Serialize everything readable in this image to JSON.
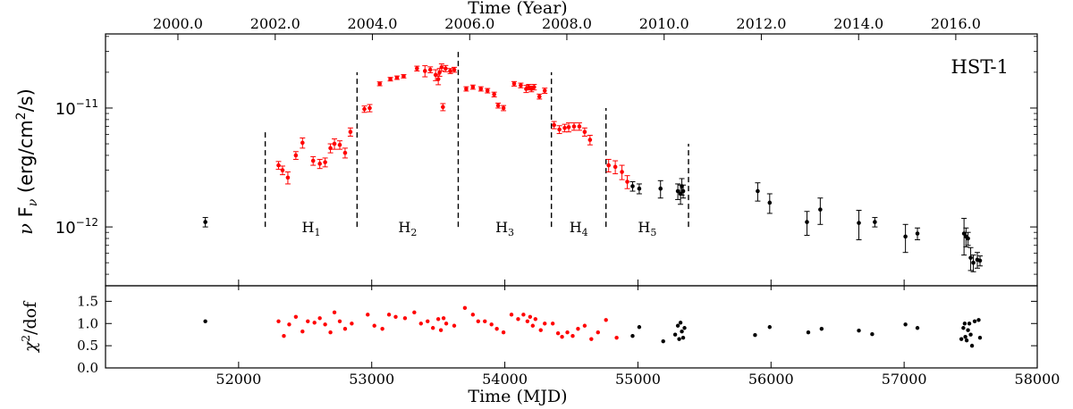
{
  "chart_data": [
    {
      "type": "scatter",
      "panel": "top",
      "title_top_axis": "Time (Year)",
      "ylabel": "ν Fν (erg/cm²/s)",
      "ylabel_parts": {
        "nu": "ν",
        "F": " F",
        "sub": "ν",
        "rest": " (erg/cm",
        "sup": "2",
        "close": "/s)"
      },
      "yscale": "log",
      "ylim": [
        3.2e-13,
        4.2e-11
      ],
      "xlim": [
        51000,
        58000
      ],
      "annotation": "HST-1",
      "year_ticks": [
        {
          "label": "2000.0",
          "mjd": 51544
        },
        {
          "label": "2002.0",
          "mjd": 52275
        },
        {
          "label": "2004.0",
          "mjd": 53005
        },
        {
          "label": "2006.0",
          "mjd": 53736
        },
        {
          "label": "2008.0",
          "mjd": 54466
        },
        {
          "label": "2010.0",
          "mjd": 55197
        },
        {
          "label": "2012.0",
          "mjd": 55927
        },
        {
          "label": "2014.0",
          "mjd": 56658
        },
        {
          "label": "2016.0",
          "mjd": 57388
        }
      ],
      "y_ticks": [
        {
          "label": "10",
          "sup": "−12",
          "value": 1e-12
        },
        {
          "label": "10",
          "sup": "−11",
          "value": 1e-11
        }
      ],
      "phase_boundaries": [
        {
          "mjd": 52200,
          "ymax": 6.5e-12
        },
        {
          "mjd": 52890,
          "ymax": 2e-11
        },
        {
          "mjd": 53650,
          "ymax": 3e-11
        },
        {
          "mjd": 54350,
          "ymax": 2e-11
        },
        {
          "mjd": 54760,
          "ymax": 1e-11
        },
        {
          "mjd": 55380,
          "ymax": 5e-12
        }
      ],
      "phases": [
        {
          "label": "H",
          "sub": "1",
          "mjd": 52545
        },
        {
          "label": "H",
          "sub": "2",
          "mjd": 53270
        },
        {
          "label": "H",
          "sub": "3",
          "mjd": 54000
        },
        {
          "label": "H",
          "sub": "4",
          "mjd": 54555
        },
        {
          "label": "H",
          "sub": "5",
          "mjd": 55070
        }
      ],
      "y_label_level": 1e-12,
      "colors": {
        "flare": "#ff0000",
        "quiescent": "#000000"
      },
      "series": [
        {
          "color": "#ff0000",
          "points": [
            [
              52300,
              3.3e-12,
              2.5e-13
            ],
            [
              52330,
              3e-12,
              2.5e-13
            ],
            [
              52370,
              2.6e-12,
              3e-13
            ],
            [
              52430,
              4e-12,
              3e-13
            ],
            [
              52480,
              5.1e-12,
              5e-13
            ],
            [
              52560,
              3.6e-12,
              3e-13
            ],
            [
              52610,
              3.4e-12,
              3e-13
            ],
            [
              52650,
              3.5e-12,
              3e-13
            ],
            [
              52690,
              4.6e-12,
              4e-13
            ],
            [
              52720,
              5e-12,
              5e-13
            ],
            [
              52760,
              4.9e-12,
              4e-13
            ],
            [
              52800,
              4.2e-12,
              4e-13
            ],
            [
              52840,
              6.3e-12,
              5e-13
            ],
            [
              52945,
              9.8e-12,
              6e-13
            ],
            [
              52985,
              1e-11,
              7e-13
            ],
            [
              53060,
              1.6e-11,
              6e-13
            ],
            [
              53140,
              1.75e-11,
              6e-13
            ],
            [
              53190,
              1.8e-11,
              6e-13
            ],
            [
              53240,
              1.85e-11,
              6e-13
            ],
            [
              53340,
              2.15e-11,
              1e-12
            ],
            [
              53400,
              2.05e-11,
              2.2e-12
            ],
            [
              53440,
              2.1e-11,
              1.2e-12
            ],
            [
              53480,
              1.9e-11,
              2e-12
            ],
            [
              53500,
              1.75e-11,
              1.8e-12
            ],
            [
              53510,
              2e-11,
              1.5e-12
            ],
            [
              53525,
              2.2e-11,
              1.5e-12
            ],
            [
              53535,
              1.02e-11,
              7e-13
            ],
            [
              53555,
              2.15e-11,
              1.3e-12
            ],
            [
              53590,
              2.05e-11,
              1e-12
            ],
            [
              53620,
              2.1e-11,
              1e-12
            ],
            [
              53710,
              1.45e-11,
              6e-13
            ],
            [
              53760,
              1.5e-11,
              6e-13
            ],
            [
              53820,
              1.45e-11,
              6e-13
            ],
            [
              53870,
              1.4e-11,
              6e-13
            ],
            [
              53920,
              1.3e-11,
              6e-13
            ],
            [
              53950,
              1.05e-11,
              5e-13
            ],
            [
              53990,
              1e-11,
              5e-13
            ],
            [
              54070,
              1.6e-11,
              7e-13
            ],
            [
              54120,
              1.55e-11,
              7e-13
            ],
            [
              54160,
              1.45e-11,
              1e-12
            ],
            [
              54180,
              1.5e-11,
              8e-13
            ],
            [
              54200,
              1.45e-11,
              8e-13
            ],
            [
              54220,
              1.5e-11,
              8e-13
            ],
            [
              54260,
              1.25e-11,
              6e-13
            ],
            [
              54300,
              1.4e-11,
              7e-13
            ],
            [
              54370,
              7.2e-12,
              5e-13
            ],
            [
              54410,
              6.6e-12,
              5e-13
            ],
            [
              54450,
              6.8e-12,
              5e-13
            ],
            [
              54480,
              6.9e-12,
              6e-13
            ],
            [
              54520,
              7e-12,
              5e-13
            ],
            [
              54560,
              7e-12,
              5e-13
            ],
            [
              54600,
              6.3e-12,
              5e-13
            ],
            [
              54640,
              5.4e-12,
              5e-13
            ],
            [
              54780,
              3.3e-12,
              4e-13
            ],
            [
              54830,
              3.2e-12,
              4e-13
            ],
            [
              54880,
              2.9e-12,
              4e-13
            ],
            [
              54920,
              2.4e-12,
              3e-13
            ]
          ]
        },
        {
          "color": "#000000",
          "points": [
            [
              51750,
              1.1e-12,
              1e-13
            ],
            [
              54960,
              2.2e-12,
              2e-13
            ],
            [
              55010,
              2.1e-12,
              2e-13
            ],
            [
              55170,
              2.1e-12,
              3.5e-13
            ],
            [
              55300,
              2e-12,
              3e-13
            ],
            [
              55320,
              1.9e-12,
              3.5e-13
            ],
            [
              55330,
              2.2e-12,
              3.5e-13
            ],
            [
              55340,
              2e-12,
              2.5e-13
            ],
            [
              55900,
              2e-12,
              3.5e-13
            ],
            [
              55990,
              1.6e-12,
              3e-13
            ],
            [
              56270,
              1.1e-12,
              2.5e-13
            ],
            [
              56370,
              1.4e-12,
              3.5e-13
            ],
            [
              56660,
              1.08e-12,
              3e-13
            ],
            [
              56780,
              1.1e-12,
              1e-13
            ],
            [
              57010,
              8.3e-13,
              2.2e-13
            ],
            [
              57100,
              8.8e-13,
              1e-13
            ],
            [
              57450,
              8.8e-13,
              3e-13
            ],
            [
              57465,
              8.3e-13,
              1.5e-13
            ],
            [
              57480,
              8e-13,
              1e-13
            ],
            [
              57500,
              5.5e-13,
              1.2e-13
            ],
            [
              57520,
              5e-13,
              8e-14
            ],
            [
              57550,
              5.3e-13,
              8e-14
            ],
            [
              57570,
              5.2e-13,
              5e-14
            ]
          ]
        }
      ]
    },
    {
      "type": "scatter",
      "panel": "bottom",
      "xlabel": "Time (MJD)",
      "ylabel": "χ²/dof",
      "ylabel_parts": {
        "chi": "χ",
        "sup": "2",
        "rest": "/dof"
      },
      "xlim": [
        51000,
        58000
      ],
      "ylim": [
        0.0,
        1.85
      ],
      "x_ticks": [
        52000,
        53000,
        54000,
        55000,
        56000,
        57000,
        58000
      ],
      "y_ticks": [
        "0.0",
        "0.5",
        "1.0",
        "1.5"
      ],
      "series": [
        {
          "color": "#ff0000",
          "points": [
            [
              52300,
              1.05
            ],
            [
              52340,
              0.72
            ],
            [
              52380,
              0.98
            ],
            [
              52430,
              1.15
            ],
            [
              52480,
              0.82
            ],
            [
              52520,
              1.05
            ],
            [
              52570,
              1.02
            ],
            [
              52610,
              1.12
            ],
            [
              52650,
              0.98
            ],
            [
              52690,
              0.8
            ],
            [
              52720,
              1.25
            ],
            [
              52760,
              1.05
            ],
            [
              52800,
              0.88
            ],
            [
              52850,
              1.0
            ],
            [
              52970,
              1.2
            ],
            [
              53020,
              0.95
            ],
            [
              53080,
              0.88
            ],
            [
              53130,
              1.2
            ],
            [
              53180,
              1.15
            ],
            [
              53250,
              1.12
            ],
            [
              53320,
              1.25
            ],
            [
              53370,
              1.0
            ],
            [
              53420,
              1.05
            ],
            [
              53460,
              0.9
            ],
            [
              53500,
              1.1
            ],
            [
              53520,
              0.85
            ],
            [
              53540,
              1.12
            ],
            [
              53560,
              1.0
            ],
            [
              53620,
              0.95
            ],
            [
              53700,
              1.35
            ],
            [
              53760,
              1.2
            ],
            [
              53800,
              1.05
            ],
            [
              53850,
              1.05
            ],
            [
              53900,
              0.98
            ],
            [
              53940,
              0.88
            ],
            [
              53990,
              0.8
            ],
            [
              54050,
              1.2
            ],
            [
              54100,
              1.1
            ],
            [
              54140,
              1.2
            ],
            [
              54170,
              1.05
            ],
            [
              54190,
              1.15
            ],
            [
              54210,
              0.95
            ],
            [
              54230,
              1.1
            ],
            [
              54270,
              0.85
            ],
            [
              54300,
              1.0
            ],
            [
              54360,
              1.0
            ],
            [
              54400,
              0.78
            ],
            [
              54430,
              0.7
            ],
            [
              54470,
              0.8
            ],
            [
              54510,
              0.72
            ],
            [
              54550,
              0.88
            ],
            [
              54600,
              0.95
            ],
            [
              54650,
              0.65
            ],
            [
              54700,
              0.8
            ],
            [
              54760,
              1.08
            ],
            [
              54840,
              0.68
            ]
          ]
        },
        {
          "color": "#000000",
          "points": [
            [
              51750,
              1.05
            ],
            [
              54960,
              0.72
            ],
            [
              55010,
              0.92
            ],
            [
              55190,
              0.6
            ],
            [
              55280,
              0.75
            ],
            [
              55300,
              0.95
            ],
            [
              55310,
              0.65
            ],
            [
              55320,
              1.02
            ],
            [
              55330,
              0.82
            ],
            [
              55340,
              0.68
            ],
            [
              55350,
              0.9
            ],
            [
              55880,
              0.74
            ],
            [
              55990,
              0.92
            ],
            [
              56280,
              0.8
            ],
            [
              56380,
              0.88
            ],
            [
              56660,
              0.84
            ],
            [
              56760,
              0.76
            ],
            [
              57010,
              0.98
            ],
            [
              57100,
              0.9
            ],
            [
              57430,
              0.65
            ],
            [
              57445,
              0.9
            ],
            [
              57455,
              1.0
            ],
            [
              57460,
              0.7
            ],
            [
              57470,
              0.62
            ],
            [
              57480,
              0.85
            ],
            [
              57490,
              1.0
            ],
            [
              57500,
              0.75
            ],
            [
              57510,
              0.5
            ],
            [
              57530,
              1.05
            ],
            [
              57560,
              1.08
            ],
            [
              57570,
              0.68
            ]
          ]
        }
      ]
    }
  ]
}
